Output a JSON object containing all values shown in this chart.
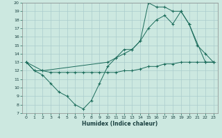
{
  "xlabel": "Humidex (Indice chaleur)",
  "bg_color": "#cce8e0",
  "grid_color": "#aacccc",
  "line_color": "#1a6b5a",
  "xlim": [
    -0.5,
    23.5
  ],
  "ylim": [
    7,
    20
  ],
  "xticks": [
    0,
    1,
    2,
    3,
    4,
    5,
    6,
    7,
    8,
    9,
    10,
    11,
    12,
    13,
    14,
    15,
    16,
    17,
    18,
    19,
    20,
    21,
    22,
    23
  ],
  "yticks": [
    7,
    8,
    9,
    10,
    11,
    12,
    13,
    14,
    15,
    16,
    17,
    18,
    19,
    20
  ],
  "line1_x": [
    0,
    1,
    2,
    3,
    4,
    5,
    6,
    7,
    8,
    9,
    10,
    11,
    12,
    13,
    14,
    15,
    16,
    17,
    18,
    19,
    20,
    21,
    22,
    23
  ],
  "line1_y": [
    13,
    12,
    11.5,
    10.5,
    9.5,
    9.0,
    8.0,
    7.5,
    8.5,
    10.5,
    12.5,
    13.5,
    14.5,
    14.5,
    15.5,
    20,
    19.5,
    19.5,
    19,
    19,
    17.5,
    15,
    14,
    13
  ],
  "line2_x": [
    0,
    2,
    10,
    11,
    12,
    13,
    14,
    15,
    16,
    17,
    18,
    19,
    20,
    22,
    23
  ],
  "line2_y": [
    13,
    12,
    13,
    13.5,
    14,
    14.5,
    15.5,
    17,
    18,
    18.5,
    17.5,
    19,
    17.5,
    13,
    13
  ],
  "line3_x": [
    0,
    1,
    2,
    3,
    4,
    5,
    6,
    7,
    8,
    9,
    10,
    11,
    12,
    13,
    14,
    15,
    16,
    17,
    18,
    19,
    20,
    21,
    22,
    23
  ],
  "line3_y": [
    13,
    12,
    12,
    11.8,
    11.8,
    11.8,
    11.8,
    11.8,
    11.8,
    11.8,
    11.8,
    11.8,
    12,
    12,
    12.2,
    12.5,
    12.5,
    12.8,
    12.8,
    13,
    13,
    13,
    13,
    13
  ]
}
